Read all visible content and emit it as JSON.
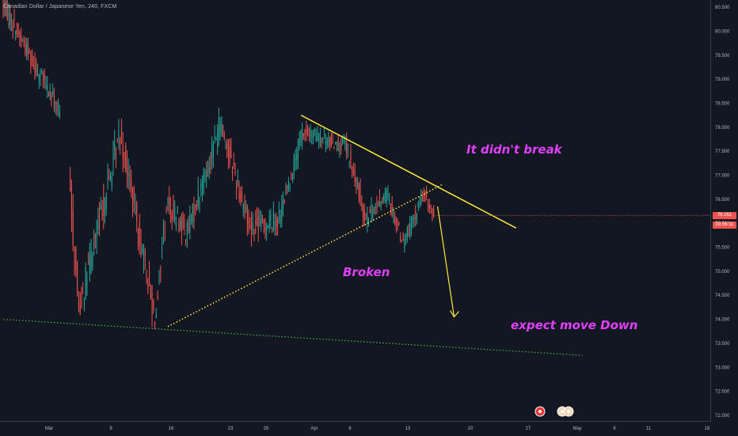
{
  "header": {
    "symbol_title": "Canadian Dollar / Japanese Yen, 240, FXCM"
  },
  "colors": {
    "background": "#131722",
    "up_candle": "#26a69a",
    "down_candle": "#ef5350",
    "trendline": "#ffeb3b",
    "support": "#4caf50",
    "annotation": "#e040fb",
    "arrow": "#ffeb3b"
  },
  "price_tags": {
    "last_price": "76.161",
    "countdown": "03:56:11"
  },
  "annotations": {
    "didnt_break": "It didn't break",
    "broken": "Broken",
    "expect_down": "expect move Down"
  },
  "event_icons": [
    "flag-event-icon",
    "flag-event-icon",
    "flag-event-icon"
  ],
  "chart_data": {
    "type": "candlestick",
    "title": "Canadian Dollar / Japanese Yen, 240, FXCM",
    "xlabel": "",
    "ylabel": "",
    "ylim": [
      71.95,
      80.6
    ],
    "x_tick_labels": [
      "Mar",
      "9",
      "16",
      "23",
      "26",
      "Apr",
      "6",
      "13",
      "20",
      "27",
      "May",
      "6",
      "11",
      "18"
    ],
    "y_tick_labels": [
      "72.000",
      "72.500",
      "73.000",
      "73.500",
      "74.000",
      "74.500",
      "75.000",
      "75.500",
      "76.000",
      "76.500",
      "77.000",
      "77.500",
      "78.000",
      "78.500",
      "79.000",
      "79.500",
      "80.000",
      "80.500"
    ],
    "grid": false,
    "segments": [
      {
        "from_time": 0.0,
        "to_time": 7.0,
        "from_price": 80.6,
        "to_price": 78.3,
        "vol": 0.35
      },
      {
        "from_time": 8.1,
        "to_time": 9.3,
        "from_price": 76.9,
        "to_price": 74.2,
        "vol": 0.6
      },
      {
        "from_time": 9.3,
        "to_time": 14.3,
        "from_price": 74.2,
        "to_price": 77.9,
        "vol": 0.55
      },
      {
        "from_time": 14.3,
        "to_time": 18.5,
        "from_price": 77.9,
        "to_price": 74.0,
        "vol": 0.5
      },
      {
        "from_time": 18.5,
        "to_time": 19.9,
        "from_price": 74.0,
        "to_price": 76.4,
        "vol": 0.5
      },
      {
        "from_time": 19.9,
        "to_time": 22.4,
        "from_price": 76.4,
        "to_price": 75.8,
        "vol": 0.45
      },
      {
        "from_time": 22.4,
        "to_time": 26.4,
        "from_price": 75.8,
        "to_price": 78.1,
        "vol": 0.45
      },
      {
        "from_time": 26.4,
        "to_time": 30.0,
        "from_price": 78.1,
        "to_price": 75.9,
        "vol": 0.45
      },
      {
        "from_time": 30.0,
        "to_time": 33.5,
        "from_price": 75.9,
        "to_price": 76.1,
        "vol": 0.4
      },
      {
        "from_time": 33.5,
        "to_time": 36.3,
        "from_price": 76.1,
        "to_price": 77.9,
        "vol": 0.35
      },
      {
        "from_time": 36.3,
        "to_time": 41.5,
        "from_price": 77.9,
        "to_price": 77.6,
        "vol": 0.3
      },
      {
        "from_time": 41.5,
        "to_time": 44.0,
        "from_price": 77.6,
        "to_price": 76.1,
        "vol": 0.35
      },
      {
        "from_time": 44.0,
        "to_time": 46.5,
        "from_price": 76.1,
        "to_price": 76.6,
        "vol": 0.3
      },
      {
        "from_time": 46.5,
        "to_time": 48.5,
        "from_price": 76.6,
        "to_price": 75.6,
        "vol": 0.3
      },
      {
        "from_time": 48.5,
        "to_time": 51.0,
        "from_price": 75.6,
        "to_price": 76.6,
        "vol": 0.3
      },
      {
        "from_time": 51.0,
        "to_time": 52.2,
        "from_price": 76.6,
        "to_price": 76.16,
        "vol": 0.25
      }
    ],
    "trendlines": [
      {
        "name": "descending resistance",
        "style": "solid",
        "from": [
          36.0,
          78.25
        ],
        "to": [
          62.0,
          75.9
        ]
      },
      {
        "name": "ascending support",
        "style": "dotted",
        "from": [
          19.9,
          73.85
        ],
        "to": [
          53.0,
          76.8
        ]
      },
      {
        "name": "horizontal support",
        "style": "dotted",
        "from": [
          0.0,
          74.0
        ],
        "to": [
          70.0,
          73.25
        ]
      }
    ],
    "projection": {
      "from": [
        52.5,
        76.35
      ],
      "to": [
        54.5,
        74.05
      ]
    },
    "last_price": 76.161
  }
}
